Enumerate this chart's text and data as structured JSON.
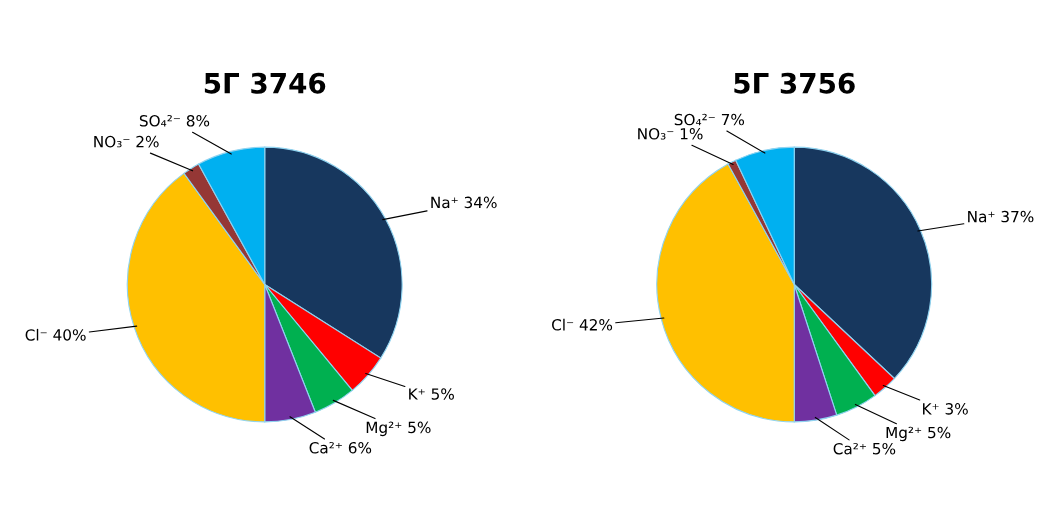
{
  "chart_data": [
    {
      "type": "pie",
      "title": "5Г 3746",
      "categories": [
        "Na⁺",
        "K⁺",
        "Mg²⁺",
        "Ca²⁺",
        "Cl⁻",
        "NO₃⁻",
        "SO₄²⁻"
      ],
      "values": [
        34,
        5,
        5,
        6,
        40,
        2,
        8
      ],
      "value_labels": [
        "34%",
        "5%",
        "5%",
        "6%",
        "40%",
        "2%",
        "8%"
      ],
      "colors": [
        "#17375e",
        "#ff0000",
        "#00b050",
        "#7030a0",
        "#ffc000",
        "#953735",
        "#00b0f0"
      ]
    },
    {
      "type": "pie",
      "title": "5Г 3756",
      "categories": [
        "Na⁺",
        "K⁺",
        "Mg²⁺",
        "Ca²⁺",
        "Cl⁻",
        "NO₃⁻",
        "SO₄²⁻"
      ],
      "values": [
        37,
        3,
        5,
        5,
        42,
        1,
        7
      ],
      "value_labels": [
        "37%",
        "3%",
        "5%",
        "5%",
        "42%",
        "1%",
        "7%"
      ],
      "colors": [
        "#17375e",
        "#ff0000",
        "#00b050",
        "#7030a0",
        "#ffc000",
        "#953735",
        "#00b0f0"
      ]
    }
  ]
}
